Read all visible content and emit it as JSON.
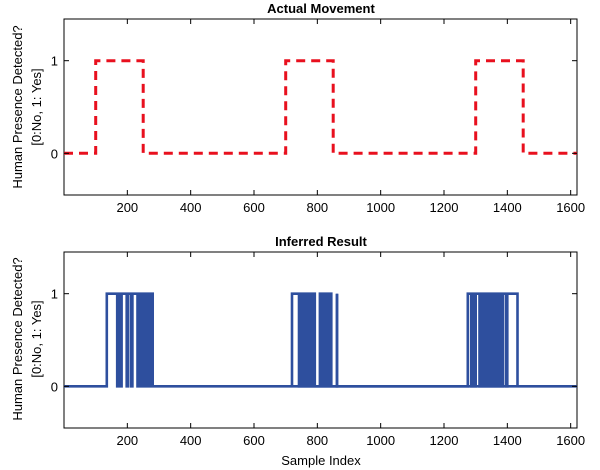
{
  "chart_data": [
    {
      "type": "line",
      "title": "Actual Movement",
      "xlabel": "",
      "ylabel_lines": [
        "Human Presence Detected?",
        "[0:No, 1: Yes]"
      ],
      "xlim": [
        0,
        1620
      ],
      "ylim": [
        -0.45,
        1.45
      ],
      "xticks": [
        200,
        400,
        600,
        800,
        1000,
        1200,
        1400,
        1600
      ],
      "yticks": [
        0,
        1
      ],
      "grid": false,
      "series": [
        {
          "style": "dashed",
          "color": "#e8101e",
          "x": [
            0,
            100,
            100,
            250,
            250,
            700,
            700,
            850,
            850,
            1300,
            1300,
            1450,
            1450,
            1620
          ],
          "y": [
            0,
            0,
            1,
            1,
            0,
            0,
            1,
            1,
            0,
            0,
            1,
            1,
            0,
            0
          ]
        }
      ]
    },
    {
      "type": "line",
      "title": "Inferred Result",
      "xlabel": "Sample Index",
      "ylabel_lines": [
        "Human Presence Detected?",
        "[0:No, 1: Yes]"
      ],
      "xlim": [
        0,
        1620
      ],
      "ylim": [
        -0.45,
        1.45
      ],
      "xticks": [
        200,
        400,
        600,
        800,
        1000,
        1200,
        1400,
        1600
      ],
      "yticks": [
        0,
        1
      ],
      "grid": false,
      "series": [
        {
          "style": "solid",
          "color": "#2e4f9e",
          "x": [
            0,
            135,
            135,
            168,
            168,
            172,
            172,
            178,
            178,
            182,
            182,
            198,
            198,
            202,
            202,
            212,
            212,
            216,
            216,
            232,
            232,
            236,
            236,
            241,
            241,
            245,
            245,
            248,
            248,
            252,
            252,
            256,
            256,
            260,
            260,
            264,
            264,
            268,
            268,
            272,
            272,
            276,
            276,
            280,
            280,
            1620
          ],
          "y": [
            0,
            0,
            1,
            1,
            0,
            0,
            1,
            1,
            0,
            0,
            1,
            1,
            0,
            0,
            1,
            1,
            0,
            0,
            1,
            1,
            0,
            0,
            1,
            1,
            0,
            0,
            1,
            1,
            0,
            0,
            1,
            1,
            0,
            0,
            1,
            1,
            0,
            0,
            1,
            1,
            0,
            0,
            1,
            1,
            0,
            0
          ]
        },
        {
          "style": "solid",
          "color": "#2e4f9e",
          "x": [
            720,
            720,
            742,
            742,
            746,
            746,
            752,
            752,
            756,
            756,
            760,
            760,
            764,
            764,
            768,
            768,
            772,
            772,
            776,
            776,
            780,
            780,
            784,
            784,
            788,
            788,
            792,
            792,
            808,
            808,
            812,
            812,
            816,
            816,
            820,
            820,
            824,
            824,
            828,
            828,
            832,
            832,
            836,
            836,
            840,
            840,
            844,
            844,
            862,
            862
          ],
          "y": [
            0,
            1,
            1,
            0,
            0,
            1,
            1,
            0,
            0,
            1,
            1,
            0,
            0,
            1,
            1,
            0,
            0,
            1,
            1,
            0,
            0,
            1,
            1,
            0,
            0,
            1,
            1,
            0,
            0,
            1,
            1,
            0,
            0,
            1,
            1,
            0,
            0,
            1,
            1,
            0,
            0,
            1,
            1,
            0,
            0,
            1,
            1,
            0,
            0,
            1
          ]
        },
        {
          "style": "solid",
          "color": "#2e4f9e",
          "x": [
            862,
            862,
            1275,
            1275,
            1286,
            1286,
            1290,
            1290,
            1296,
            1296,
            1300,
            1300,
            1312,
            1312,
            1316,
            1316,
            1322,
            1322,
            1326,
            1326,
            1332,
            1332,
            1336,
            1336,
            1342,
            1342,
            1346,
            1346,
            1352,
            1352,
            1356,
            1356,
            1362,
            1362,
            1366,
            1366,
            1372,
            1372,
            1376,
            1376,
            1382,
            1382,
            1386,
            1386,
            1396,
            1396,
            1400,
            1400,
            1432,
            1432
          ],
          "y": [
            1,
            0,
            0,
            1,
            1,
            0,
            0,
            1,
            1,
            0,
            0,
            1,
            1,
            0,
            0,
            1,
            1,
            0,
            0,
            1,
            1,
            0,
            0,
            1,
            1,
            0,
            0,
            1,
            1,
            0,
            0,
            1,
            1,
            0,
            0,
            1,
            1,
            0,
            0,
            1,
            1,
            0,
            0,
            1,
            1,
            0,
            0,
            1,
            1,
            0
          ]
        }
      ]
    }
  ]
}
